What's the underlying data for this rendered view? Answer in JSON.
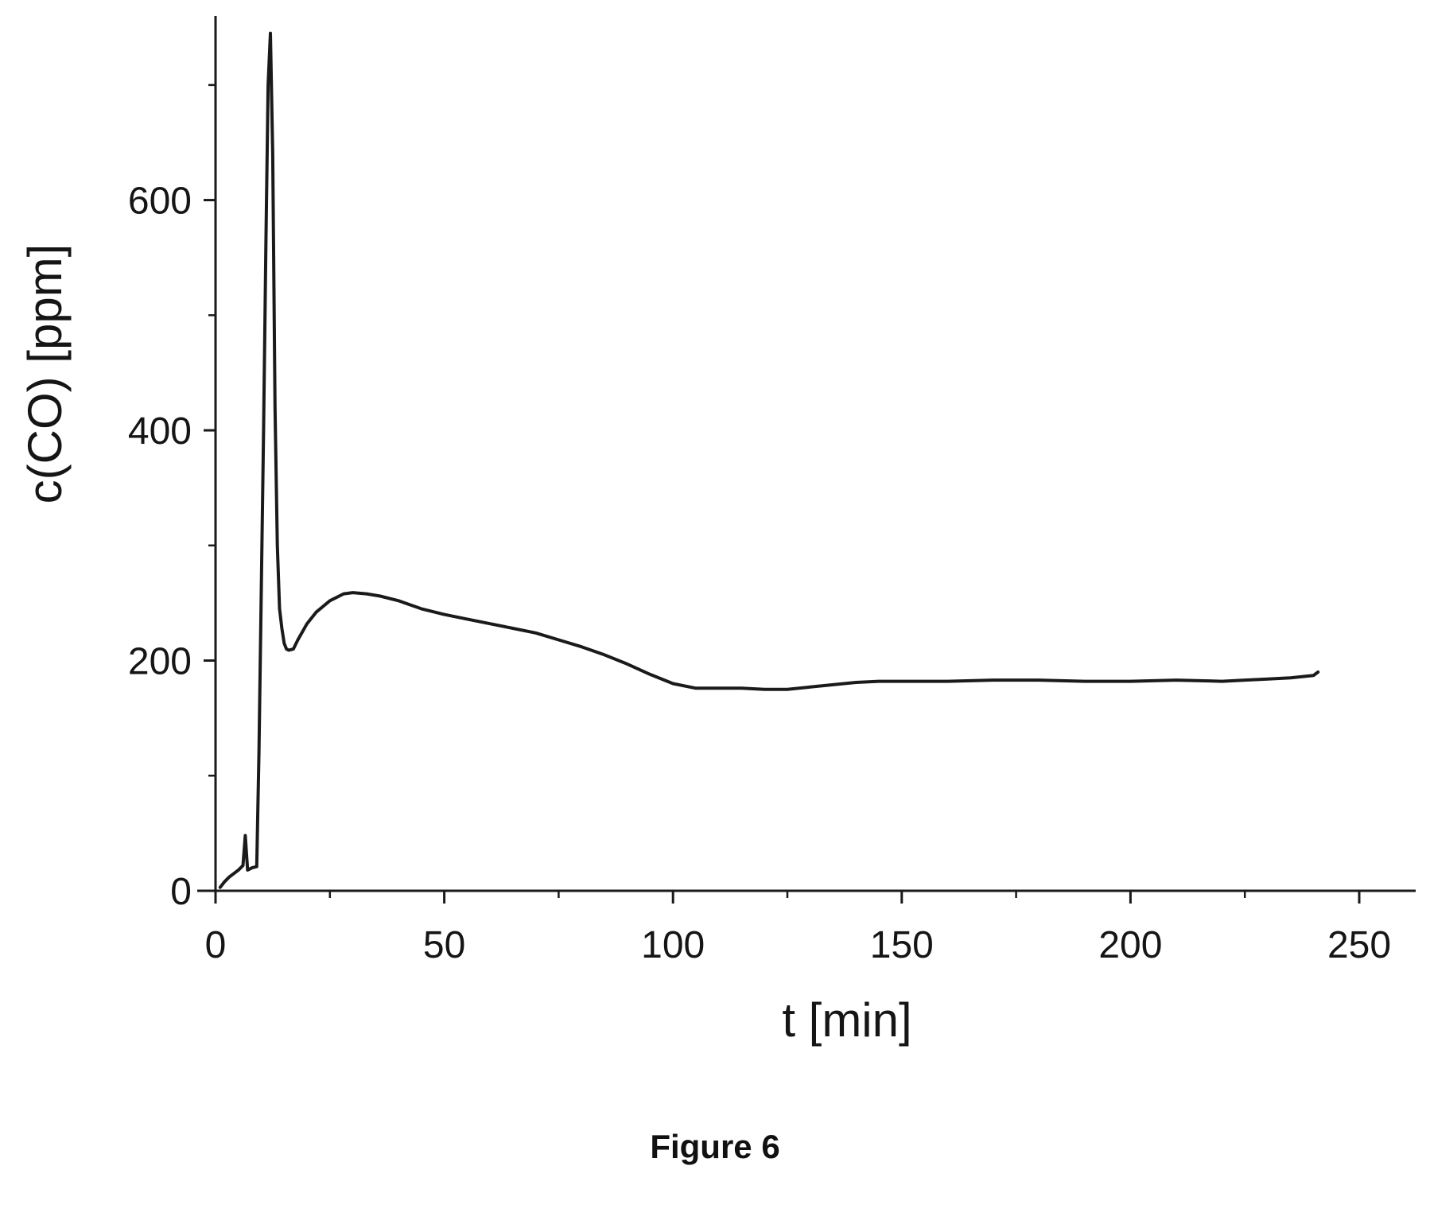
{
  "figure": {
    "caption": "Figure 6"
  },
  "chart_data": {
    "type": "line",
    "title": "",
    "xlabel": "t [min]",
    "ylabel": "c(CO) [ppm]",
    "xlim": [
      0,
      265
    ],
    "ylim": [
      0,
      760
    ],
    "x_ticks": [
      0,
      50,
      100,
      150,
      200,
      250
    ],
    "x_minor_ticks": [
      25,
      75,
      125,
      175,
      225
    ],
    "y_ticks": [
      0,
      200,
      400,
      600
    ],
    "y_minor_ticks": [
      100,
      300,
      500,
      700
    ],
    "grid": false,
    "legend": "none",
    "line_color": "#1a1a1a",
    "series": [
      {
        "x": [
          1.0,
          2.0,
          3.0,
          4.0,
          5.0,
          6.0,
          6.5,
          7.0,
          8.0,
          9.0,
          9.5,
          10.0,
          10.5,
          11.0,
          11.5,
          12.0,
          12.5,
          13.0,
          13.5,
          14.0,
          14.5,
          15.0,
          15.5,
          16.0,
          17.0,
          18.0,
          19.0,
          20.0,
          22.0,
          25.0,
          28.0,
          30.0,
          33.0,
          36.0,
          40.0,
          45.0,
          50.0,
          55.0,
          60.0,
          65.0,
          70.0,
          75.0,
          80.0,
          85.0,
          90.0,
          95.0,
          100.0,
          105.0,
          110.0,
          115.0,
          120.0,
          125.0,
          130.0,
          135.0,
          140.0,
          145.0,
          150.0,
          160.0,
          170.0,
          180.0,
          190.0,
          200.0,
          210.0,
          220.0,
          225.0,
          230.0,
          235.0,
          240.0,
          241.0
        ],
        "y": [
          3,
          8,
          12,
          15,
          18,
          22,
          48,
          18,
          20,
          21,
          120,
          260,
          400,
          560,
          700,
          745,
          640,
          420,
          300,
          245,
          228,
          215,
          210,
          209,
          210,
          218,
          225,
          232,
          242,
          252,
          258,
          259,
          258,
          256,
          252,
          245,
          240,
          236,
          232,
          228,
          224,
          218,
          212,
          205,
          197,
          188,
          180,
          176,
          176,
          176,
          175,
          175,
          177,
          179,
          181,
          182,
          182,
          182,
          183,
          183,
          182,
          182,
          183,
          182,
          183,
          184,
          185,
          187,
          190
        ]
      }
    ]
  }
}
